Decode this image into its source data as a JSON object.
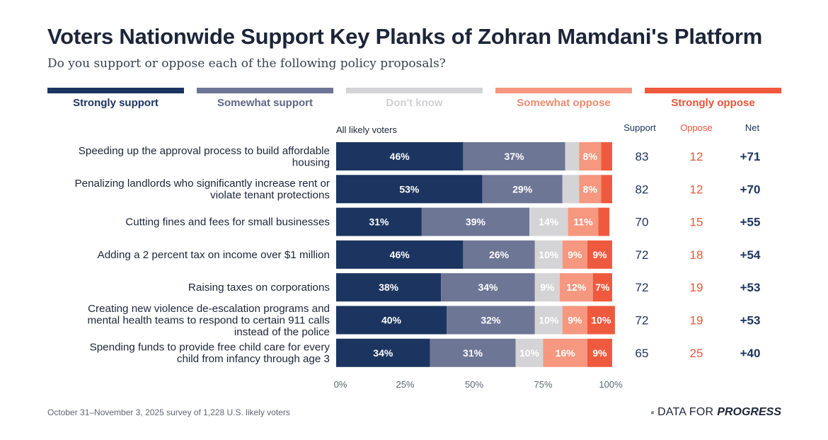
{
  "title": "Voters Nationwide Support Key Planks of Zohran Mamdani's Platform",
  "subtitle": "Do you support or oppose each of the following policy proposals?",
  "legend": [
    {
      "label": "Strongly support",
      "color": "#1c3560",
      "text_color": "#1c3560"
    },
    {
      "label": "Somewhat support",
      "color": "#6e7696",
      "text_color": "#5e6788"
    },
    {
      "label": "Don't know",
      "color": "#d4d4d6",
      "text_color": "#cfd0d3"
    },
    {
      "label": "Somewhat oppose",
      "color": "#f6977f",
      "text_color": "#f08a6e"
    },
    {
      "label": "Strongly oppose",
      "color": "#ef5a3e",
      "text_color": "#e8553a"
    }
  ],
  "footer": "October 31–November 3, 2025 survey of 1,228 U.S. likely voters",
  "logo": {
    "data_text": "DATA FOR",
    "progress_text": "PROGRESS"
  },
  "chart_data": {
    "type": "bar",
    "orientation": "horizontal",
    "stacked": true,
    "group_label": "All likely voters",
    "xlim": [
      0,
      100
    ],
    "xticks": [
      "0%",
      "25%",
      "50%",
      "75%",
      "100%"
    ],
    "categories": [
      [
        "Speeding up the approval process to build affordable",
        "housing"
      ],
      [
        "Penalizing landlords who significantly increase rent or",
        "violate tenant protections"
      ],
      [
        "Cutting fines and fees for small businesses"
      ],
      [
        "Adding a 2 percent tax on income over $1 million"
      ],
      [
        "Raising taxes on corporations"
      ],
      [
        "Creating new violence de-escalation programs and",
        "mental health teams to respond to certain 911 calls",
        "instead of the police"
      ],
      [
        "Spending funds to provide free child care for every",
        "child from infancy through age 3"
      ]
    ],
    "series": [
      {
        "name": "Strongly support",
        "color": "#1c3560",
        "label_color": "#ffffff",
        "values": [
          46,
          53,
          31,
          46,
          38,
          40,
          34
        ],
        "labels": [
          "46%",
          "53%",
          "31%",
          "46%",
          "38%",
          "40%",
          "34%"
        ]
      },
      {
        "name": "Somewhat support",
        "color": "#6e7696",
        "label_color": "#ffffff",
        "values": [
          37,
          29,
          39,
          26,
          34,
          32,
          31
        ],
        "labels": [
          "37%",
          "29%",
          "39%",
          "26%",
          "34%",
          "32%",
          "31%"
        ]
      },
      {
        "name": "Don't know",
        "color": "#d4d4d6",
        "label_color": "#ffffff",
        "values": [
          5,
          6,
          14,
          10,
          9,
          10,
          10
        ],
        "labels": [
          "",
          "",
          "14%",
          "10%",
          "9%",
          "10%",
          "10%"
        ]
      },
      {
        "name": "Somewhat oppose",
        "color": "#f6977f",
        "label_color": "#ffffff",
        "values": [
          8,
          8,
          11,
          9,
          12,
          9,
          16
        ],
        "labels": [
          "8%",
          "8%",
          "11%",
          "9%",
          "12%",
          "9%",
          "16%"
        ]
      },
      {
        "name": "Strongly oppose",
        "color": "#ef5a3e",
        "label_color": "#ffffff",
        "values": [
          4,
          4,
          4,
          9,
          7,
          10,
          9
        ],
        "labels": [
          "",
          "",
          "",
          "9%",
          "7%",
          "10%",
          "9%"
        ]
      }
    ],
    "summary": {
      "headers": {
        "support": "Support",
        "oppose": "Oppose",
        "net": "Net"
      },
      "support": [
        "83",
        "82",
        "70",
        "72",
        "72",
        "72",
        "65"
      ],
      "oppose": [
        "12",
        "12",
        "15",
        "18",
        "19",
        "19",
        "25"
      ],
      "net": [
        "+71",
        "+70",
        "+55",
        "+54",
        "+53",
        "+53",
        "+40"
      ],
      "colors": {
        "support": "#1c3560",
        "oppose": "#e8553a",
        "net": "#1c3560"
      }
    }
  }
}
